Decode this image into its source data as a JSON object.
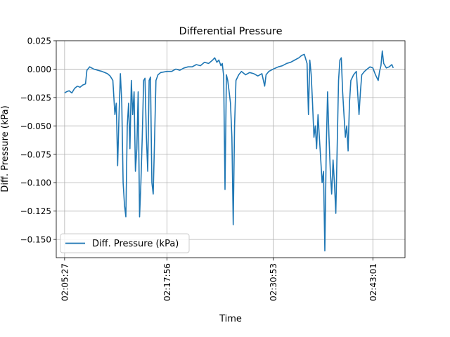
{
  "chart_data": {
    "type": "line",
    "title": "Differential Pressure",
    "xlabel": "Time",
    "ylabel": "Diff. Pressure (kPa)",
    "ylim": [
      -0.166,
      0.025
    ],
    "yticks": [
      0.025,
      0.0,
      -0.025,
      -0.05,
      -0.075,
      -0.1,
      -0.125,
      -0.15
    ],
    "ytick_labels": [
      "0.025",
      "0.000",
      "−0.025",
      "−0.050",
      "−0.075",
      "−0.100",
      "−0.125",
      "−0.150"
    ],
    "xlim": [
      "02:04:26",
      "02:46:56"
    ],
    "xticks": [
      "02:05:27",
      "02:17:56",
      "02:30:53",
      "02:43:01"
    ],
    "grid": true,
    "legend": "lower-left",
    "series": [
      {
        "name": "Diff. Pressure (kPa)",
        "color": "#1f77b4",
        "points": [
          [
            "02:05:27",
            -0.021
          ],
          [
            "02:05:40",
            -0.02
          ],
          [
            "02:06:00",
            -0.019
          ],
          [
            "02:06:20",
            -0.021
          ],
          [
            "02:06:40",
            -0.017
          ],
          [
            "02:07:00",
            -0.015
          ],
          [
            "02:07:20",
            -0.016
          ],
          [
            "02:07:40",
            -0.014
          ],
          [
            "02:08:00",
            -0.013
          ],
          [
            "02:08:10",
            -0.001
          ],
          [
            "02:08:30",
            0.002
          ],
          [
            "02:09:00",
            0.0
          ],
          [
            "02:09:30",
            -0.001
          ],
          [
            "02:10:00",
            -0.002
          ],
          [
            "02:10:20",
            -0.003
          ],
          [
            "02:10:40",
            -0.004
          ],
          [
            "02:11:00",
            -0.006
          ],
          [
            "02:11:20",
            -0.01
          ],
          [
            "02:11:35",
            -0.04
          ],
          [
            "02:11:45",
            -0.03
          ],
          [
            "02:11:55",
            -0.085
          ],
          [
            "02:12:05",
            -0.04
          ],
          [
            "02:12:15",
            -0.004
          ],
          [
            "02:12:25",
            -0.03
          ],
          [
            "02:12:35",
            -0.1
          ],
          [
            "02:12:45",
            -0.12
          ],
          [
            "02:12:55",
            -0.13
          ],
          [
            "02:13:05",
            -0.05
          ],
          [
            "02:13:15",
            -0.03
          ],
          [
            "02:13:25",
            -0.07
          ],
          [
            "02:13:35",
            -0.01
          ],
          [
            "02:13:45",
            -0.04
          ],
          [
            "02:13:55",
            -0.02
          ],
          [
            "02:14:05",
            -0.09
          ],
          [
            "02:14:15",
            -0.07
          ],
          [
            "02:14:25",
            -0.02
          ],
          [
            "02:14:35",
            -0.13
          ],
          [
            "02:14:45",
            -0.1
          ],
          [
            "02:14:55",
            -0.06
          ],
          [
            "02:15:05",
            -0.01
          ],
          [
            "02:15:15",
            -0.008
          ],
          [
            "02:15:25",
            -0.06
          ],
          [
            "02:15:35",
            -0.09
          ],
          [
            "02:15:45",
            -0.01
          ],
          [
            "02:15:55",
            -0.007
          ],
          [
            "02:16:05",
            -0.1
          ],
          [
            "02:16:15",
            -0.11
          ],
          [
            "02:16:25",
            -0.06
          ],
          [
            "02:16:35",
            -0.01
          ],
          [
            "02:16:50",
            -0.005
          ],
          [
            "02:17:10",
            -0.003
          ],
          [
            "02:17:56",
            -0.002
          ],
          [
            "02:18:30",
            -0.002
          ],
          [
            "02:19:00",
            0.0
          ],
          [
            "02:19:30",
            -0.001
          ],
          [
            "02:20:00",
            0.001
          ],
          [
            "02:20:30",
            0.002
          ],
          [
            "02:21:00",
            0.002
          ],
          [
            "02:21:30",
            0.004
          ],
          [
            "02:22:00",
            0.003
          ],
          [
            "02:22:30",
            0.006
          ],
          [
            "02:23:00",
            0.005
          ],
          [
            "02:23:30",
            0.008
          ],
          [
            "02:23:45",
            0.01
          ],
          [
            "02:24:00",
            0.006
          ],
          [
            "02:24:15",
            0.008
          ],
          [
            "02:24:30",
            0.003
          ],
          [
            "02:24:40",
            0.005
          ],
          [
            "02:24:50",
            -0.006
          ],
          [
            "02:25:00",
            -0.106
          ],
          [
            "02:25:10",
            -0.005
          ],
          [
            "02:25:20",
            -0.01
          ],
          [
            "02:25:30",
            -0.02
          ],
          [
            "02:25:40",
            -0.03
          ],
          [
            "02:25:50",
            -0.06
          ],
          [
            "02:26:00",
            -0.137
          ],
          [
            "02:26:10",
            -0.05
          ],
          [
            "02:26:20",
            -0.01
          ],
          [
            "02:26:40",
            -0.005
          ],
          [
            "02:27:00",
            -0.002
          ],
          [
            "02:27:30",
            -0.005
          ],
          [
            "02:28:00",
            -0.003
          ],
          [
            "02:28:30",
            -0.004
          ],
          [
            "02:29:00",
            -0.006
          ],
          [
            "02:29:30",
            -0.004
          ],
          [
            "02:29:50",
            -0.015
          ],
          [
            "02:30:00",
            -0.005
          ],
          [
            "02:30:20",
            -0.002
          ],
          [
            "02:30:53",
            0.0
          ],
          [
            "02:31:30",
            0.002
          ],
          [
            "02:32:00",
            0.003
          ],
          [
            "02:32:30",
            0.005
          ],
          [
            "02:33:00",
            0.006
          ],
          [
            "02:33:30",
            0.008
          ],
          [
            "02:34:00",
            0.01
          ],
          [
            "02:34:20",
            0.012
          ],
          [
            "02:34:40",
            0.013
          ],
          [
            "02:35:00",
            0.005
          ],
          [
            "02:35:10",
            -0.04
          ],
          [
            "02:35:20",
            0.008
          ],
          [
            "02:35:30",
            -0.005
          ],
          [
            "02:35:40",
            -0.03
          ],
          [
            "02:35:50",
            -0.06
          ],
          [
            "02:36:00",
            -0.05
          ],
          [
            "02:36:10",
            -0.07
          ],
          [
            "02:36:20",
            -0.04
          ],
          [
            "02:36:30",
            -0.06
          ],
          [
            "02:36:40",
            -0.08
          ],
          [
            "02:36:50",
            -0.1
          ],
          [
            "02:37:00",
            -0.09
          ],
          [
            "02:37:10",
            -0.16
          ],
          [
            "02:37:20",
            -0.07
          ],
          [
            "02:37:30",
            -0.02
          ],
          [
            "02:37:40",
            -0.06
          ],
          [
            "02:37:50",
            -0.09
          ],
          [
            "02:38:00",
            -0.11
          ],
          [
            "02:38:10",
            -0.08
          ],
          [
            "02:38:20",
            -0.1
          ],
          [
            "02:38:30",
            -0.127
          ],
          [
            "02:38:40",
            -0.07
          ],
          [
            "02:38:50",
            -0.01
          ],
          [
            "02:39:00",
            0.008
          ],
          [
            "02:39:10",
            0.01
          ],
          [
            "02:39:20",
            -0.02
          ],
          [
            "02:39:30",
            -0.04
          ],
          [
            "02:39:40",
            -0.06
          ],
          [
            "02:39:50",
            -0.05
          ],
          [
            "02:40:00",
            -0.072
          ],
          [
            "02:40:10",
            -0.03
          ],
          [
            "02:40:20",
            -0.01
          ],
          [
            "02:40:40",
            -0.005
          ],
          [
            "02:41:00",
            -0.002
          ],
          [
            "02:41:20",
            -0.04
          ],
          [
            "02:41:30",
            -0.02
          ],
          [
            "02:41:40",
            -0.005
          ],
          [
            "02:42:00",
            -0.002
          ],
          [
            "02:42:20",
            0.0
          ],
          [
            "02:42:40",
            0.002
          ],
          [
            "02:43:01",
            0.001
          ],
          [
            "02:43:20",
            -0.005
          ],
          [
            "02:43:40",
            -0.01
          ],
          [
            "02:43:50",
            -0.002
          ],
          [
            "02:44:00",
            0.003
          ],
          [
            "02:44:10",
            0.016
          ],
          [
            "02:44:20",
            0.005
          ],
          [
            "02:44:40",
            0.001
          ],
          [
            "02:45:00",
            0.002
          ],
          [
            "02:45:20",
            0.004
          ],
          [
            "02:45:30",
            0.001
          ]
        ]
      }
    ]
  }
}
